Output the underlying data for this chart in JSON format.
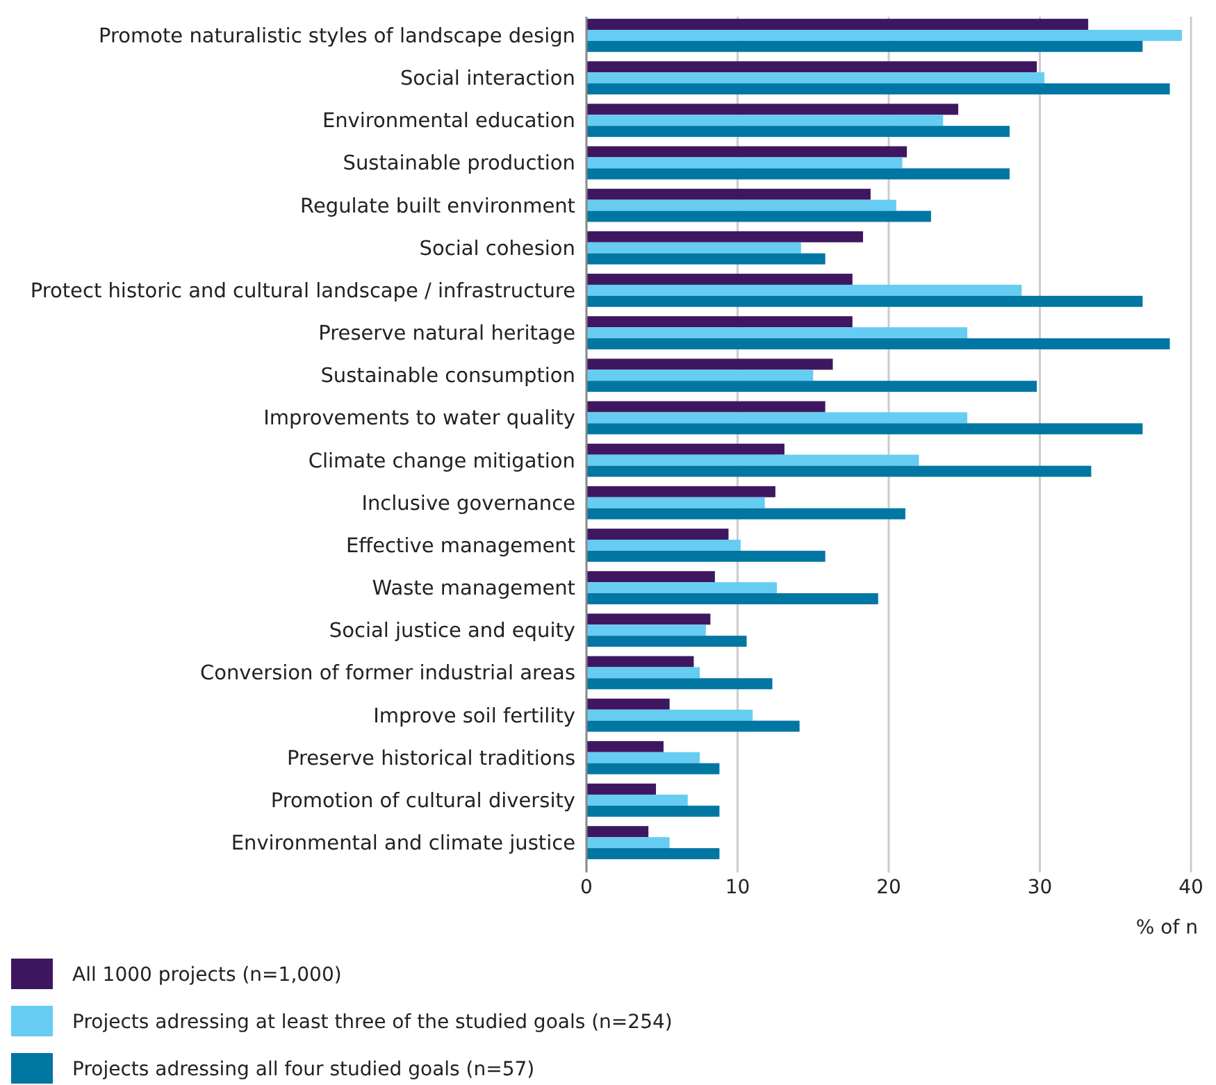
{
  "chart_data": {
    "type": "bar",
    "orientation": "horizontal",
    "xlabel": "% of n",
    "categories": [
      "Promote naturalistic styles of landscape design",
      "Social interaction",
      "Environmental education",
      "Sustainable production",
      "Regulate built environment",
      "Social cohesion",
      "Protect historic and cultural landscape / infrastructure",
      "Preserve natural heritage",
      "Sustainable consumption",
      "Improvements to water quality",
      "Climate change mitigation",
      "Inclusive governance",
      "Effective management",
      "Waste management",
      "Social justice and equity",
      "Conversion of former industrial areas",
      "Improve soil fertility",
      "Preserve historical traditions",
      "Promotion of cultural diversity",
      "Environmental and climate justice"
    ],
    "series": [
      {
        "name": "All 1000 projects (n=1,000)",
        "color": "#3f1760",
        "values": [
          33.2,
          29.8,
          24.6,
          21.2,
          18.8,
          18.3,
          17.6,
          17.6,
          16.3,
          15.8,
          13.1,
          12.5,
          9.4,
          8.5,
          8.2,
          7.1,
          5.5,
          5.1,
          4.6,
          4.1
        ]
      },
      {
        "name": "Projects adressing at least three of the studied  goals (n=254)",
        "color": "#66ccf2",
        "values": [
          39.4,
          30.3,
          23.6,
          20.9,
          20.5,
          14.2,
          28.8,
          25.2,
          15.0,
          25.2,
          22.0,
          11.8,
          10.2,
          12.6,
          7.9,
          7.5,
          11.0,
          7.5,
          6.7,
          5.5
        ]
      },
      {
        "name": "Projects adressing all four studied goals (n=57)",
        "color": "#0076a3",
        "values": [
          36.8,
          38.6,
          28.0,
          28.0,
          22.8,
          15.8,
          36.8,
          38.6,
          29.8,
          36.8,
          33.4,
          21.1,
          15.8,
          19.3,
          10.6,
          12.3,
          14.1,
          8.8,
          8.8,
          8.8
        ]
      }
    ],
    "xlim": [
      0,
      40
    ],
    "xticks": [
      0,
      10,
      20,
      30,
      40
    ],
    "grid": "x",
    "legend": "bottom"
  }
}
